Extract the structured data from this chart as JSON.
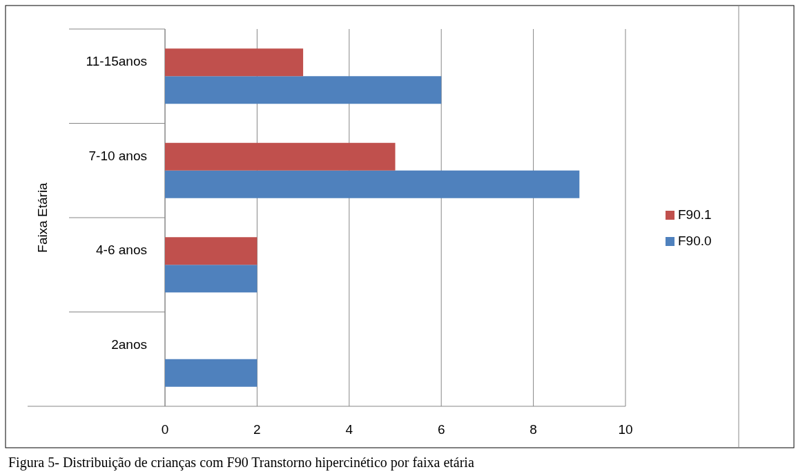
{
  "chart_data": {
    "type": "bar",
    "orientation": "horizontal",
    "ylabel": "Faixa Etária",
    "categories": [
      "11-15anos",
      "7-10 anos",
      "4-6 anos",
      "2anos"
    ],
    "series": [
      {
        "name": "F90.0",
        "color": "#4f81bd",
        "values": [
          6,
          9,
          2,
          2
        ]
      },
      {
        "name": "F90.1",
        "color": "#c0504d",
        "values": [
          3,
          5,
          2,
          0
        ]
      }
    ],
    "xlim": [
      0,
      10
    ],
    "xticks": [
      0,
      2,
      4,
      6,
      8,
      10
    ],
    "grid": "x",
    "legend": "right",
    "annotations": [
      "Figura 5- Distribuição de crianças com F90 Transtorno hipercinético por faixa etária"
    ]
  }
}
